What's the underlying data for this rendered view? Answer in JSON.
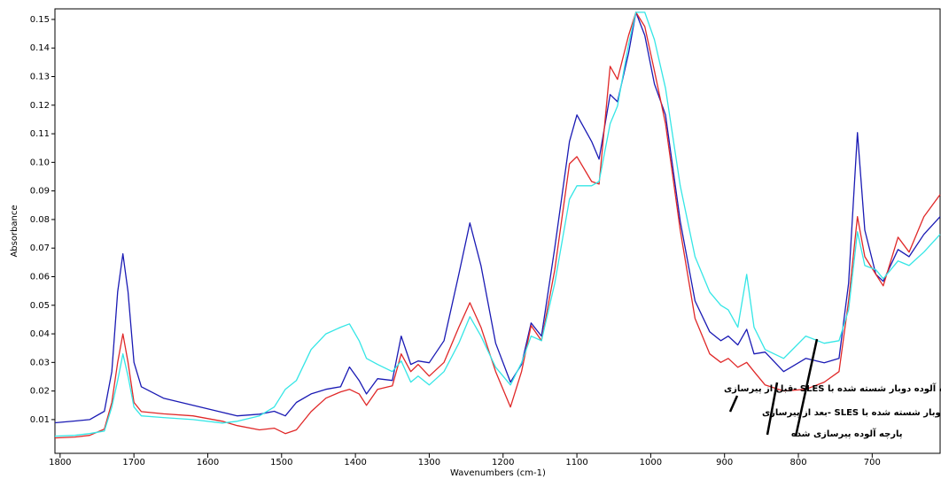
{
  "chart_data": {
    "type": "line",
    "ylabel": "Absorbance",
    "xlabel": "Wavenumbers (cm-1)",
    "xlim": [
      1807,
      608
    ],
    "ylim": [
      -0.0018,
      0.1537
    ],
    "xticks": [
      1800,
      1700,
      1600,
      1500,
      1400,
      1300,
      1200,
      1100,
      1000,
      900,
      800,
      700
    ],
    "yticks": [
      0.01,
      0.02,
      0.03,
      0.04,
      0.05,
      0.06,
      0.07,
      0.08,
      0.09,
      {
        "value": 0.1,
        "label": "0.10"
      },
      0.11,
      0.12,
      0.13,
      0.14,
      0.15
    ],
    "x": [
      1807,
      1780,
      1760,
      1740,
      1730,
      1722,
      1715,
      1708,
      1700,
      1690,
      1660,
      1620,
      1580,
      1560,
      1530,
      1510,
      1495,
      1480,
      1460,
      1440,
      1420,
      1408,
      1395,
      1385,
      1370,
      1350,
      1338,
      1325,
      1315,
      1300,
      1280,
      1260,
      1245,
      1230,
      1210,
      1190,
      1175,
      1162,
      1148,
      1130,
      1110,
      1100,
      1080,
      1070,
      1055,
      1045,
      1030,
      1020,
      1008,
      995,
      980,
      960,
      940,
      920,
      905,
      895,
      882,
      870,
      860,
      845,
      820,
      790,
      765,
      745,
      732,
      720,
      710,
      695,
      685,
      665,
      650,
      630,
      608
    ],
    "series": [
      {
        "color": "#1a1ab4",
        "values": [
          0.0089,
          0.0095,
          0.01,
          0.0129,
          0.0268,
          0.0547,
          0.068,
          0.0547,
          0.03,
          0.0215,
          0.0175,
          0.015,
          0.0125,
          0.0113,
          0.0119,
          0.0129,
          0.0113,
          0.016,
          0.019,
          0.0206,
          0.0215,
          0.0284,
          0.0237,
          0.019,
          0.0243,
          0.0237,
          0.0392,
          0.0293,
          0.0305,
          0.0299,
          0.0376,
          0.0608,
          0.0788,
          0.0639,
          0.0367,
          0.0231,
          0.0293,
          0.0438,
          0.0392,
          0.0701,
          0.1073,
          0.1166,
          0.1073,
          0.1011,
          0.1237,
          0.1212,
          0.1382,
          0.1525,
          0.1444,
          0.1274,
          0.1166,
          0.0794,
          0.0515,
          0.0407,
          0.0376,
          0.0392,
          0.0361,
          0.0416,
          0.033,
          0.0336,
          0.0268,
          0.0314,
          0.0299,
          0.0314,
          0.0577,
          0.1104,
          0.0763,
          0.0608,
          0.0584,
          0.0695,
          0.067,
          0.0748,
          0.081
        ]
      },
      {
        "color": "#e02828",
        "values": [
          0.0036,
          0.0039,
          0.0045,
          0.0067,
          0.016,
          0.03,
          0.04,
          0.03,
          0.016,
          0.0128,
          0.012,
          0.0113,
          0.0094,
          0.0079,
          0.0064,
          0.007,
          0.0051,
          0.0064,
          0.0128,
          0.0175,
          0.0197,
          0.0206,
          0.019,
          0.015,
          0.0206,
          0.0218,
          0.033,
          0.0268,
          0.0293,
          0.0252,
          0.03,
          0.0423,
          0.0509,
          0.0423,
          0.0268,
          0.0144,
          0.0268,
          0.0429,
          0.0376,
          0.0624,
          0.0995,
          0.102,
          0.0933,
          0.0924,
          0.1336,
          0.129,
          0.1444,
          0.1525,
          0.1475,
          0.132,
          0.1135,
          0.0763,
          0.0454,
          0.033,
          0.03,
          0.0314,
          0.0283,
          0.03,
          0.0268,
          0.0221,
          0.02,
          0.0206,
          0.0231,
          0.0268,
          0.0515,
          0.081,
          0.067,
          0.0608,
          0.0568,
          0.0738,
          0.0686,
          0.081,
          0.0887
        ]
      },
      {
        "color": "#35e6e6",
        "values": [
          0.0042,
          0.0045,
          0.0051,
          0.006,
          0.0144,
          0.0237,
          0.033,
          0.0252,
          0.0144,
          0.0113,
          0.0107,
          0.01,
          0.0088,
          0.0094,
          0.0113,
          0.0144,
          0.0206,
          0.0237,
          0.0345,
          0.04,
          0.0423,
          0.0435,
          0.0376,
          0.0314,
          0.0293,
          0.0268,
          0.0305,
          0.0231,
          0.0252,
          0.0221,
          0.0268,
          0.0367,
          0.046,
          0.0392,
          0.0283,
          0.0221,
          0.0299,
          0.0392,
          0.0376,
          0.0577,
          0.0871,
          0.0918,
          0.0918,
          0.0933,
          0.1135,
          0.1197,
          0.1413,
          0.1525,
          0.1525,
          0.1429,
          0.1259,
          0.0918,
          0.067,
          0.0546,
          0.05,
          0.0484,
          0.0423,
          0.0608,
          0.0423,
          0.0345,
          0.0314,
          0.0392,
          0.0367,
          0.0376,
          0.0484,
          0.0757,
          0.0639,
          0.0624,
          0.0593,
          0.0655,
          0.0639,
          0.0686,
          0.0748
        ]
      }
    ],
    "annotations": [
      "پارچه آلوده دوبار شسته شده با SLES -قبل از پیرسازی",
      "پارچه آلوده دوبار شسته شده با SLES -بعد از پیرسازی",
      "پارچه آلوده پیرسازی شده"
    ]
  }
}
